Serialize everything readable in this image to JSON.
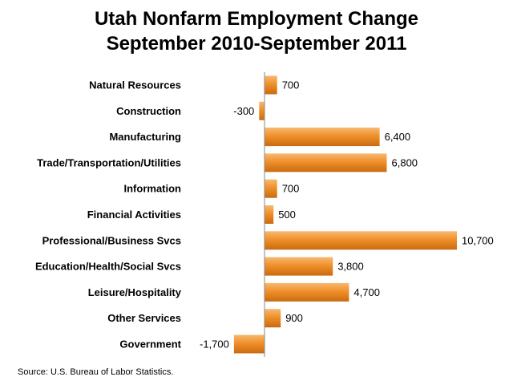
{
  "title_line1": "Utah Nonfarm Employment Change",
  "title_line2": "September 2010-September 2011",
  "source": "Source: U.S. Bureau of Labor Statistics.",
  "colors": {
    "bar": "#f0902a",
    "bar_light": "#f8b870",
    "bar_dark": "#c96a10",
    "axis": "#8a8a8a"
  },
  "chart_data": {
    "type": "bar",
    "orientation": "horizontal",
    "title": "Utah Nonfarm Employment Change September 2010-September 2011",
    "categories": [
      "Natural Resources",
      "Construction",
      "Manufacturing",
      "Trade/Transportation/Utilities",
      "Information",
      "Financial Activities",
      "Professional/Business Svcs",
      "Education/Health/Social Svcs",
      "Leisure/Hospitality",
      "Other Services",
      "Government"
    ],
    "values": [
      700,
      -300,
      6400,
      6800,
      700,
      500,
      10700,
      3800,
      4700,
      900,
      -1700
    ],
    "data_labels": [
      "700",
      "-300",
      "6,400",
      "6,800",
      "700",
      "500",
      "10,700",
      "3,800",
      "4,700",
      "900",
      "-1,700"
    ],
    "xlim": [
      -1700,
      10700
    ],
    "grid": false,
    "legend": "none"
  }
}
